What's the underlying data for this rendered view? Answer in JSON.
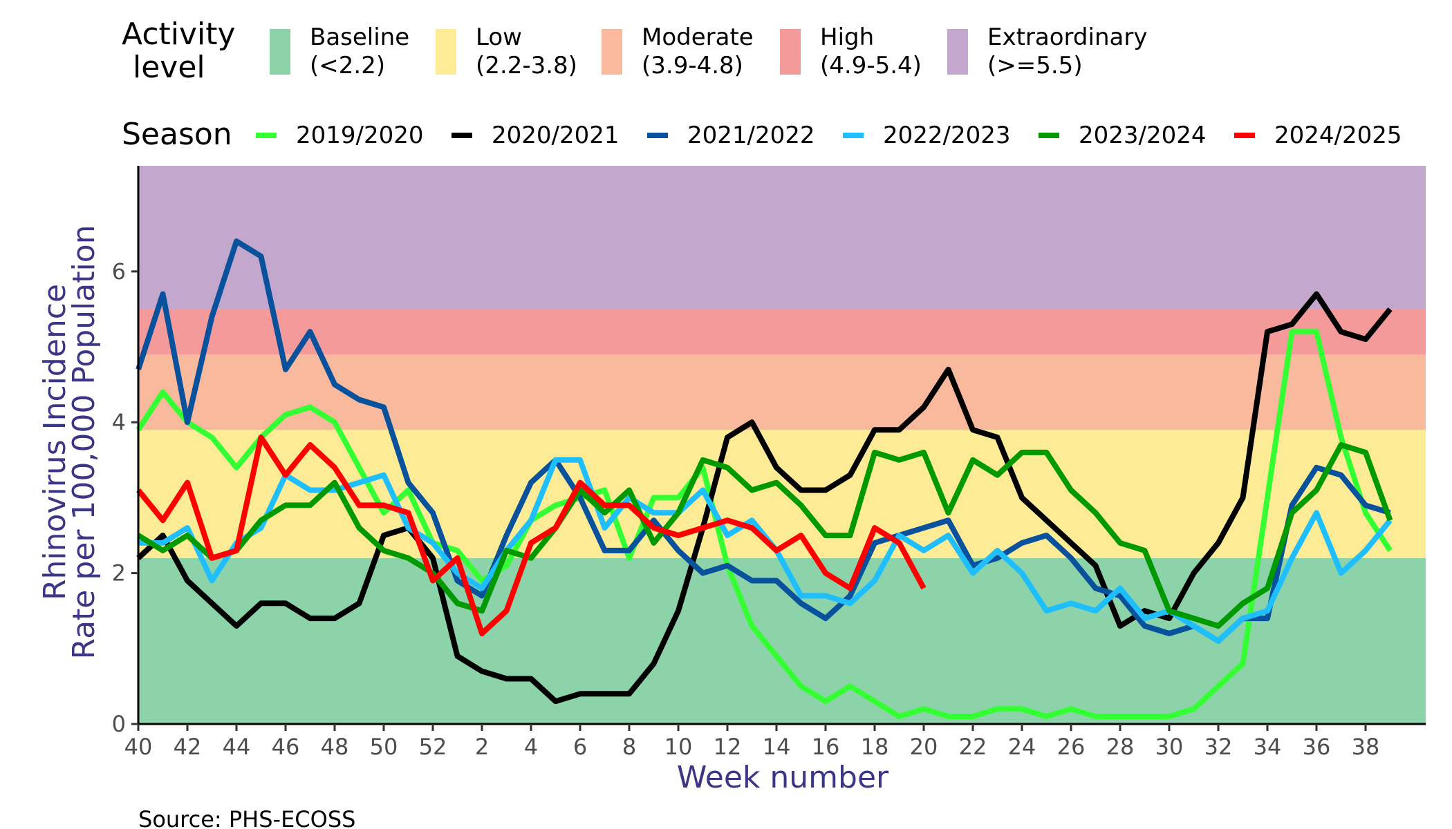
{
  "activity_legend": {
    "title_line1": "Activity",
    "title_line2": "level",
    "items": [
      {
        "name": "Baseline",
        "range": "(<2.2)",
        "color": "#8DD3AA"
      },
      {
        "name": "Low",
        "range": "(2.2-3.8)",
        "color": "#FDEC95"
      },
      {
        "name": "Moderate",
        "range": "(3.9-4.8)",
        "color": "#F8B99C"
      },
      {
        "name": "High",
        "range": "(4.9-5.4)",
        "color": "#F59A9B"
      },
      {
        "name": "Extraordinary",
        "range": "(>=5.5)",
        "color": "#C3A7CD"
      }
    ]
  },
  "season_legend": {
    "title": "Season"
  },
  "source": "Source: PHS-ECOSS",
  "chart_data": {
    "type": "line",
    "xlabel": "Week number",
    "ylabel_line1": "Rhinovirus Incidence",
    "ylabel_line2": "Rate per 100,000 Population",
    "ylim": [
      0,
      7.4
    ],
    "yticks": [
      0,
      2,
      4,
      6
    ],
    "weeks": [
      40,
      41,
      42,
      43,
      44,
      45,
      46,
      47,
      48,
      49,
      50,
      51,
      52,
      1,
      2,
      3,
      4,
      5,
      6,
      7,
      8,
      9,
      10,
      11,
      12,
      13,
      14,
      15,
      16,
      17,
      18,
      19,
      20,
      21,
      22,
      23,
      24,
      25,
      26,
      27,
      28,
      29,
      30,
      31,
      32,
      33,
      34,
      35,
      36,
      37,
      38,
      39
    ],
    "xtick_labels": [
      "40",
      "42",
      "44",
      "46",
      "48",
      "50",
      "52",
      "2",
      "4",
      "6",
      "8",
      "10",
      "12",
      "14",
      "16",
      "18",
      "20",
      "22",
      "24",
      "26",
      "28",
      "30",
      "32",
      "34",
      "36",
      "38"
    ],
    "bands": [
      {
        "name": "Baseline",
        "from": 0,
        "to": 2.2,
        "color": "#8DD3AA"
      },
      {
        "name": "Low",
        "from": 2.2,
        "to": 3.9,
        "color": "#FDEC95"
      },
      {
        "name": "Moderate",
        "from": 3.9,
        "to": 4.9,
        "color": "#F8B99C"
      },
      {
        "name": "High",
        "from": 4.9,
        "to": 5.5,
        "color": "#F59A9B"
      },
      {
        "name": "Extraordinary",
        "from": 5.5,
        "to": 7.4,
        "color": "#C3A7CD"
      }
    ],
    "series": [
      {
        "name": "2019/2020",
        "color": "#33FF33",
        "values": [
          3.9,
          4.4,
          4.0,
          3.8,
          3.4,
          3.8,
          4.1,
          4.2,
          4.0,
          3.4,
          2.8,
          3.1,
          2.4,
          2.3,
          1.9,
          2.1,
          2.7,
          2.9,
          3.0,
          3.1,
          2.2,
          3.0,
          3.0,
          3.4,
          2.1,
          1.3,
          0.9,
          0.5,
          0.3,
          0.5,
          0.3,
          0.1,
          0.2,
          0.1,
          0.1,
          0.2,
          0.2,
          0.1,
          0.2,
          0.1,
          0.1,
          0.1,
          0.1,
          0.2,
          0.5,
          0.8,
          3.0,
          5.2,
          5.2,
          3.8,
          2.8,
          2.3
        ]
      },
      {
        "name": "2020/2021",
        "color": "#000000",
        "values": [
          2.2,
          2.5,
          1.9,
          1.6,
          1.3,
          1.6,
          1.6,
          1.4,
          1.4,
          1.6,
          2.5,
          2.6,
          2.2,
          0.9,
          0.7,
          0.6,
          0.6,
          0.3,
          0.4,
          0.4,
          0.4,
          0.8,
          1.5,
          2.6,
          3.8,
          4.0,
          3.4,
          3.1,
          3.1,
          3.3,
          3.9,
          3.9,
          4.2,
          4.7,
          3.9,
          3.8,
          3.0,
          2.7,
          2.4,
          2.1,
          1.3,
          1.5,
          1.4,
          2.0,
          2.4,
          3.0,
          5.2,
          5.3,
          5.7,
          5.2,
          5.1,
          5.5
        ]
      },
      {
        "name": "2021/2022",
        "color": "#08519C",
        "values": [
          4.7,
          5.7,
          4.0,
          5.4,
          6.4,
          6.2,
          4.7,
          5.2,
          4.5,
          4.3,
          4.2,
          3.2,
          2.8,
          1.9,
          1.7,
          2.5,
          3.2,
          3.5,
          3.0,
          2.3,
          2.3,
          2.7,
          2.3,
          2.0,
          2.1,
          1.9,
          1.9,
          1.6,
          1.4,
          1.7,
          2.4,
          2.5,
          2.6,
          2.7,
          2.1,
          2.2,
          2.4,
          2.5,
          2.2,
          1.8,
          1.7,
          1.3,
          1.2,
          1.3,
          1.1,
          1.4,
          1.4,
          2.9,
          3.4,
          3.3,
          2.9,
          2.8
        ]
      },
      {
        "name": "2022/2023",
        "color": "#1FBFFF",
        "values": [
          2.4,
          2.4,
          2.6,
          1.9,
          2.4,
          2.6,
          3.3,
          3.1,
          3.1,
          3.2,
          3.3,
          2.6,
          2.4,
          2.0,
          1.8,
          2.3,
          2.7,
          3.5,
          3.5,
          2.6,
          3.0,
          2.8,
          2.8,
          3.1,
          2.5,
          2.7,
          2.3,
          1.7,
          1.7,
          1.6,
          1.9,
          2.5,
          2.3,
          2.5,
          2.0,
          2.3,
          2.0,
          1.5,
          1.6,
          1.5,
          1.8,
          1.4,
          1.5,
          1.3,
          1.1,
          1.4,
          1.5,
          2.2,
          2.8,
          2.0,
          2.3,
          2.7
        ]
      },
      {
        "name": "2023/2024",
        "color": "#009900",
        "values": [
          2.5,
          2.3,
          2.5,
          2.2,
          2.3,
          2.7,
          2.9,
          2.9,
          3.2,
          2.6,
          2.3,
          2.2,
          2.0,
          1.6,
          1.5,
          2.3,
          2.2,
          2.6,
          3.1,
          2.8,
          3.1,
          2.4,
          2.8,
          3.5,
          3.4,
          3.1,
          3.2,
          2.9,
          2.5,
          2.5,
          3.6,
          3.5,
          3.6,
          2.8,
          3.5,
          3.3,
          3.6,
          3.6,
          3.1,
          2.8,
          2.4,
          2.3,
          1.5,
          1.4,
          1.3,
          1.6,
          1.8,
          2.8,
          3.1,
          3.7,
          3.6,
          2.7
        ]
      },
      {
        "name": "2024/2025",
        "color": "#FF0000",
        "values": [
          3.1,
          2.7,
          3.2,
          2.2,
          2.3,
          3.8,
          3.3,
          3.7,
          3.4,
          2.9,
          2.9,
          2.8,
          1.9,
          2.2,
          1.2,
          1.5,
          2.4,
          2.6,
          3.2,
          2.9,
          2.9,
          2.6,
          2.5,
          2.6,
          2.7,
          2.6,
          2.3,
          2.5,
          2.0,
          1.8,
          2.6,
          2.4,
          1.8
        ]
      }
    ]
  }
}
